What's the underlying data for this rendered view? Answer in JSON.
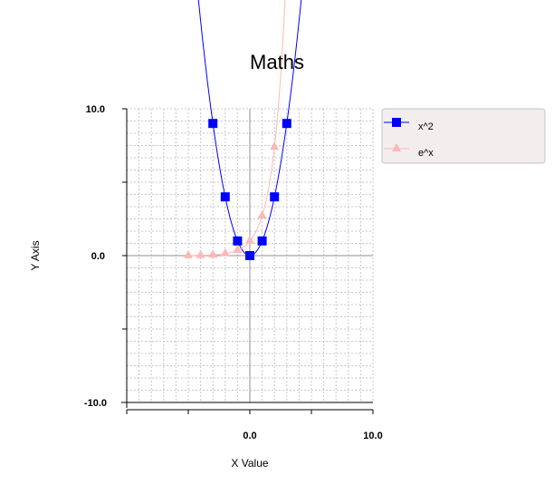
{
  "chart_data": {
    "type": "line",
    "title": "Maths",
    "xlabel": "X Value",
    "ylabel": "Y Axis",
    "xlim": [
      -10,
      10
    ],
    "ylim": [
      -10,
      10
    ],
    "x_tick_labels": [
      "0.0",
      "10.0"
    ],
    "y_tick_labels": [
      "10.0",
      "0.0",
      "-10.0"
    ],
    "grid": true,
    "legend_position": "top-right",
    "series": [
      {
        "name": "x^2",
        "color": "#0000ff",
        "marker": "square",
        "x": [
          -3,
          -2,
          -1,
          0,
          1,
          2,
          3
        ],
        "y": [
          9,
          4,
          1,
          0,
          1,
          4,
          9
        ],
        "curve_extends_beyond_plot": true
      },
      {
        "name": "e^x",
        "color": "#ffb8b8",
        "marker": "triangle",
        "x": [
          -5,
          -4,
          -3,
          -2,
          -1,
          0,
          1,
          2
        ],
        "y": [
          0.0067,
          0.0183,
          0.0498,
          0.1353,
          0.3679,
          1,
          2.718,
          7.389
        ],
        "curve_extends_beyond_plot": true
      }
    ]
  }
}
